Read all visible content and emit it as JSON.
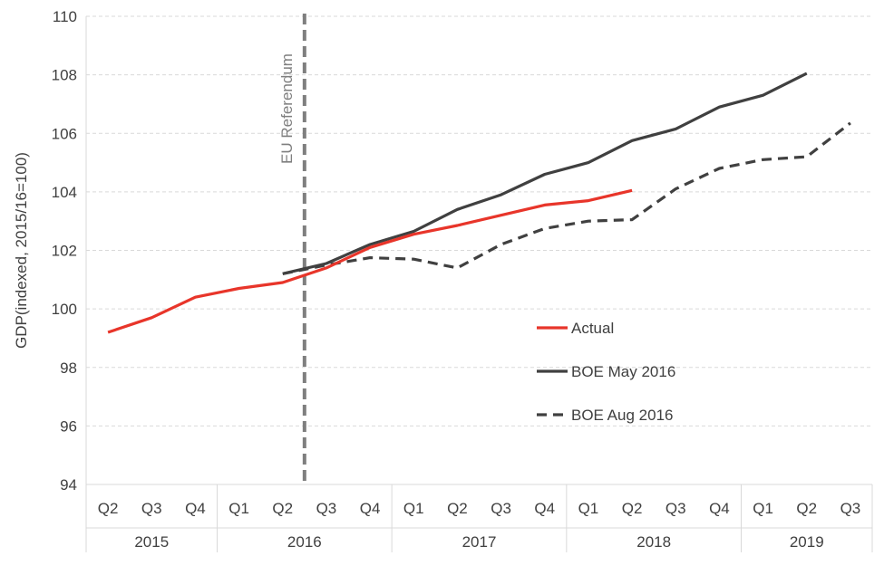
{
  "chart_data": {
    "type": "line",
    "ylabel": "GDP(indexed,  2015/16=100)",
    "ylim": [
      94,
      110
    ],
    "yticks": [
      94,
      96,
      98,
      100,
      102,
      104,
      106,
      108,
      110
    ],
    "grid": true,
    "legend_position": "center-right",
    "categories": [
      "Q2",
      "Q3",
      "Q4",
      "Q1",
      "Q2",
      "Q3",
      "Q4",
      "Q1",
      "Q2",
      "Q3",
      "Q4",
      "Q1",
      "Q2",
      "Q3",
      "Q4",
      "Q1",
      "Q2",
      "Q3"
    ],
    "year_groups": [
      {
        "label": "2015",
        "count": 3
      },
      {
        "label": "2016",
        "count": 4
      },
      {
        "label": "2017",
        "count": 4
      },
      {
        "label": "2018",
        "count": 4
      },
      {
        "label": "2019",
        "count": 3
      }
    ],
    "annotation": {
      "label": "EU Referendum",
      "color": "#7f7f7f"
    },
    "series": [
      {
        "name": "Actual",
        "color": "#e8352a",
        "style": "solid",
        "values": [
          99.2,
          99.7,
          100.4,
          100.7,
          100.9,
          101.4,
          102.1,
          102.55,
          102.85,
          103.2,
          103.55,
          103.7,
          104.05,
          null,
          null,
          null,
          null,
          null
        ]
      },
      {
        "name": "BOE May 2016",
        "color": "#404040",
        "style": "solid",
        "values": [
          null,
          null,
          null,
          null,
          101.2,
          101.55,
          102.2,
          102.65,
          103.4,
          103.9,
          104.6,
          105.0,
          105.75,
          106.15,
          106.9,
          107.3,
          108.05,
          null
        ]
      },
      {
        "name": "BOE Aug 2016",
        "color": "#404040",
        "style": "dashed",
        "values": [
          null,
          null,
          null,
          null,
          101.2,
          101.5,
          101.75,
          101.7,
          101.4,
          102.2,
          102.75,
          103.0,
          103.05,
          104.1,
          104.8,
          105.1,
          105.2,
          106.35
        ]
      }
    ]
  }
}
